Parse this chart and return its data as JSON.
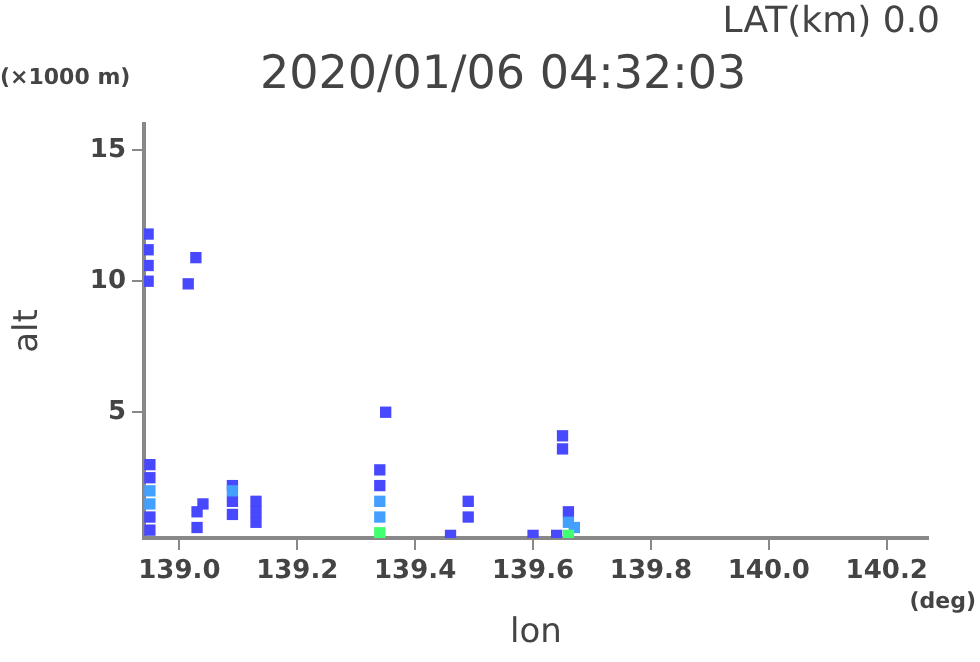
{
  "chart_data": {
    "type": "scatter",
    "title": "2020/01/06 04:32:03",
    "subtitle": "LAT(km) 0.0",
    "xlabel": "lon",
    "ylabel": "alt",
    "annotations": [
      "(×1000 m)",
      "(deg)"
    ],
    "xlim": [
      138.94,
      140.27
    ],
    "ylim": [
      0.2,
      16
    ],
    "xticks": [
      {
        "value": 139,
        "label": "139.0"
      },
      {
        "value": 139.2,
        "label": "139.2"
      },
      {
        "value": 139.4,
        "label": "139.4"
      },
      {
        "value": 139.6,
        "label": "139.6"
      },
      {
        "value": 139.8,
        "label": "139.8"
      },
      {
        "value": 140,
        "label": "140.0"
      },
      {
        "value": 140.2,
        "label": "140.2"
      }
    ],
    "yticks": [
      5,
      10,
      15
    ],
    "grid": false,
    "legend": false,
    "marker": "square",
    "series": [
      {
        "color": "#4848ff",
        "x": [
          138.947,
          138.947,
          138.947,
          138.947,
          139.028,
          139.015,
          138.95,
          138.95,
          138.95,
          138.95,
          139.03,
          139.03,
          139.04,
          139.09,
          139.09,
          139.09,
          139.13,
          139.13,
          139.13,
          139.34,
          139.34,
          139.35,
          139.49,
          139.49,
          139.46,
          139.65,
          139.65,
          139.6,
          139.64,
          139.66
        ],
        "values": [
          11.8,
          11.2,
          10.6,
          10.0,
          10.9,
          9.9,
          3.0,
          2.5,
          1.0,
          0.5,
          1.2,
          0.6,
          1.5,
          2.2,
          1.6,
          1.1,
          1.6,
          1.2,
          0.8,
          2.8,
          2.2,
          5.0,
          1.6,
          1.0,
          0.3,
          4.1,
          3.6,
          0.3,
          0.3,
          1.2
        ]
      },
      {
        "color": "#44a0ff",
        "x": [
          138.95,
          138.95,
          139.09,
          139.34,
          139.34,
          139.66,
          139.67
        ],
        "values": [
          2.0,
          1.5,
          2.0,
          1.6,
          1.0,
          0.8,
          0.6
        ]
      },
      {
        "color": "#40ff70",
        "x": [
          139.34,
          139.66
        ],
        "values": [
          0.4,
          0.3
        ]
      }
    ]
  }
}
